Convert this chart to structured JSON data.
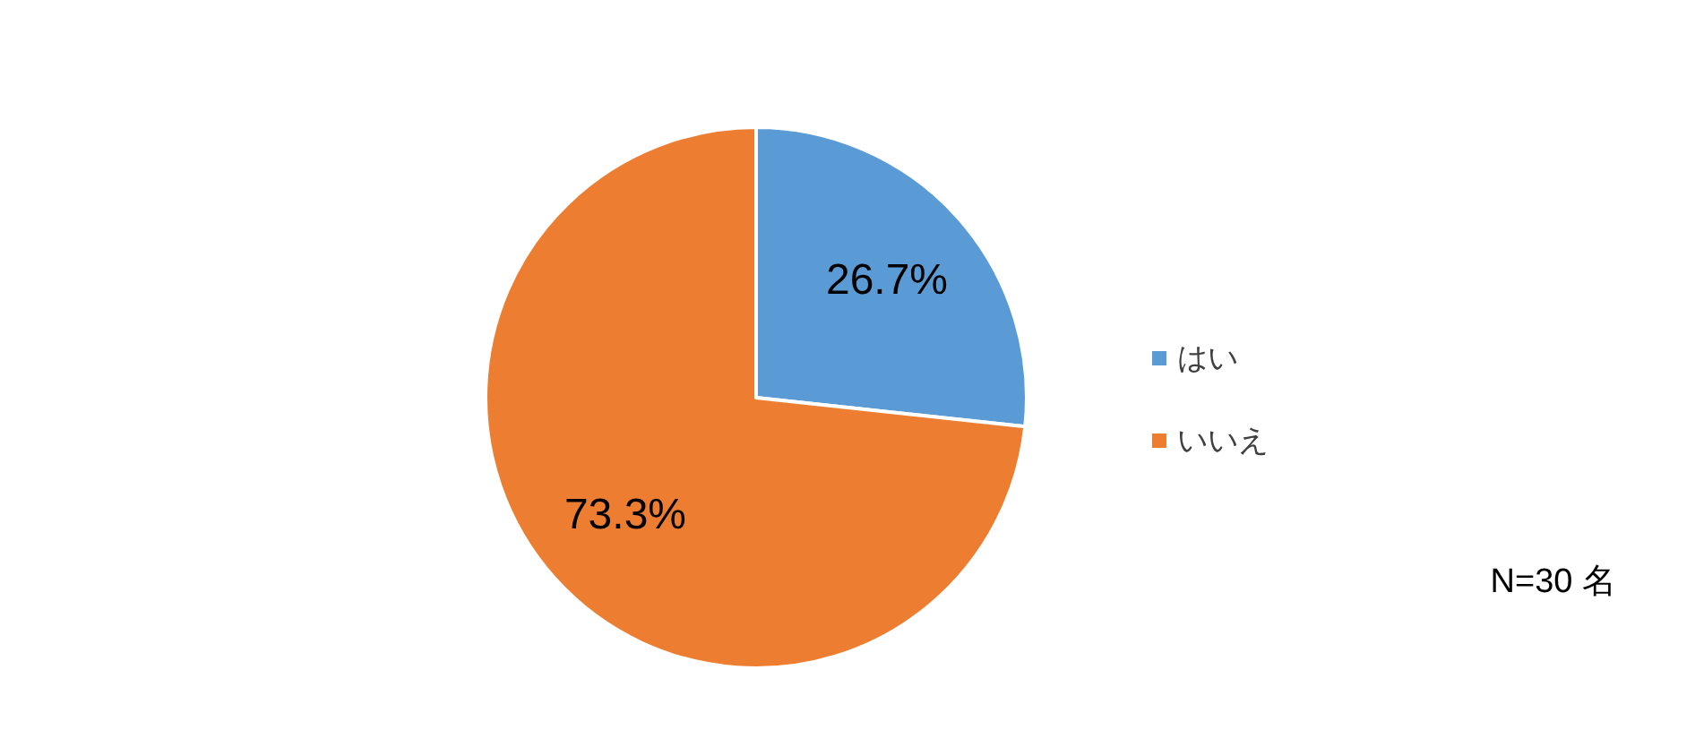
{
  "chart_data": {
    "type": "pie",
    "categories": [
      "はい",
      "いいえ"
    ],
    "values": [
      26.7,
      73.3
    ],
    "colors": [
      "#5b9bd5",
      "#ed7d31"
    ],
    "value_labels": [
      "26.7%",
      "73.3%"
    ],
    "legend": "right",
    "annotations": [
      "N=30 名"
    ]
  }
}
